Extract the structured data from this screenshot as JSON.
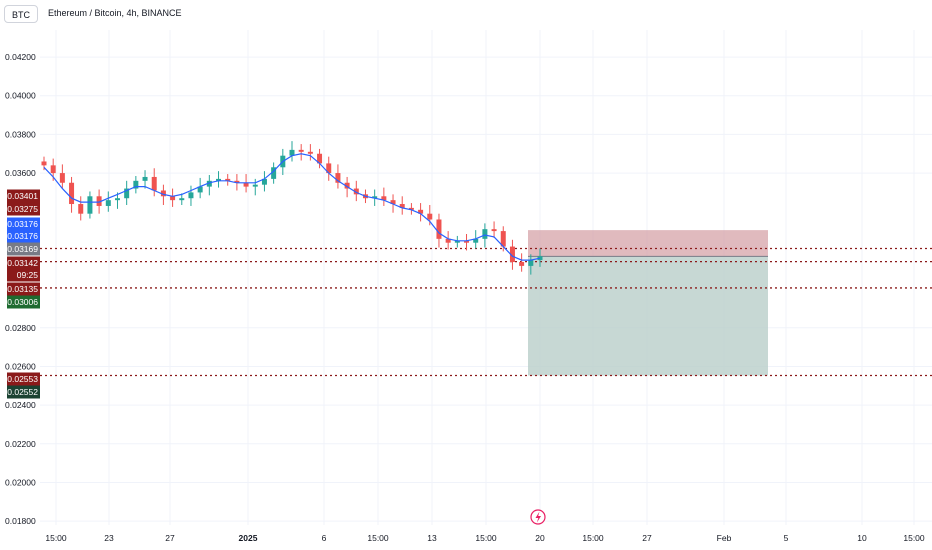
{
  "header": {
    "symbol": "BTC",
    "title": "Ethereum / Bitcoin, 4h, BINANCE"
  },
  "event_icon": "lightning-event-icon",
  "colors": {
    "up": "#26a69a",
    "down": "#ef5350",
    "ma": "#2962ff",
    "stop_zone": "#d5a3a8",
    "target_zone": "#b9cec9",
    "level_line": "#8b1a1a",
    "grid": "#f0f3fa"
  },
  "chart_data": {
    "type": "candlestick",
    "title": "Ethereum / Bitcoin, 4h, BINANCE",
    "timeframe": "4h",
    "ylim": [
      0.0178,
      0.0434
    ],
    "y_ticks": [
      "0.04200",
      "0.04000",
      "0.03800",
      "0.03600",
      "0.02800",
      "0.02600",
      "0.02400",
      "0.02200",
      "0.02000",
      "0.01800"
    ],
    "x_ticks": [
      "15:00",
      "23",
      "27",
      "2025",
      "6",
      "15:00",
      "13",
      "15:00",
      "20",
      "15:00",
      "27",
      "Feb",
      "5",
      "10",
      "15:00"
    ],
    "grid": true,
    "price_labels": [
      {
        "value": "0.03401",
        "bg": "#8b1a1a"
      },
      {
        "value": "0.03275",
        "bg": "#8b1a1a"
      },
      {
        "value": "0.03176",
        "bg": "#2962ff"
      },
      {
        "value": "0.03176",
        "bg": "#2962ff"
      },
      {
        "value": "0.03169",
        "bg": "#787b86"
      },
      {
        "value": "0.03142",
        "bg": "#8b1a1a"
      },
      {
        "value": "09:25",
        "bg": "#8b1a1a"
      },
      {
        "value": "0.03135",
        "bg": "#8b1a1a"
      },
      {
        "value": "0.03006",
        "bg": "#1e6b30"
      },
      {
        "value": "0.02553",
        "bg": "#8b1a1a"
      },
      {
        "value": "0.02552",
        "bg": "#1b4332"
      }
    ],
    "horizontal_levels": [
      0.0321,
      0.03142,
      0.03006,
      0.02553
    ],
    "position_tool": {
      "entry": 0.03169,
      "stop": 0.03305,
      "target": 0.02553
    },
    "candles_close_path": [
      0.0364,
      0.036,
      0.0355,
      0.0344,
      0.0339,
      0.0348,
      0.0343,
      0.0346,
      0.0347,
      0.0352,
      0.0356,
      0.0358,
      0.0351,
      0.0348,
      0.0346,
      0.0347,
      0.035,
      0.0353,
      0.0356,
      0.0357,
      0.0356,
      0.0355,
      0.0353,
      0.0354,
      0.0357,
      0.0363,
      0.0369,
      0.0372,
      0.0371,
      0.037,
      0.0365,
      0.036,
      0.0355,
      0.0352,
      0.0349,
      0.0347,
      0.0348,
      0.0346,
      0.0344,
      0.0342,
      0.0341,
      0.0339,
      0.0336,
      0.0326,
      0.0324,
      0.0325,
      0.0324,
      0.0326,
      0.0331,
      0.033,
      0.0322,
      0.0314,
      0.0312,
      0.0315,
      0.0317
    ],
    "ma_series": {
      "values": [
        0.0363,
        0.0358,
        0.0352,
        0.0347,
        0.0345,
        0.0345,
        0.0345,
        0.0347,
        0.0349,
        0.0351,
        0.0353,
        0.0353,
        0.0351,
        0.0349,
        0.0348,
        0.0349,
        0.0351,
        0.0353,
        0.0355,
        0.0356,
        0.0356,
        0.0355,
        0.0355,
        0.0355,
        0.0357,
        0.0361,
        0.0366,
        0.0369,
        0.037,
        0.0369,
        0.0365,
        0.036,
        0.0356,
        0.0353,
        0.035,
        0.0348,
        0.0347,
        0.0346,
        0.0344,
        0.0342,
        0.0341,
        0.0339,
        0.0335,
        0.0329,
        0.0326,
        0.0325,
        0.0325,
        0.0326,
        0.0328,
        0.0327,
        0.0322,
        0.0317,
        0.0315,
        0.0315,
        0.0316
      ]
    }
  }
}
